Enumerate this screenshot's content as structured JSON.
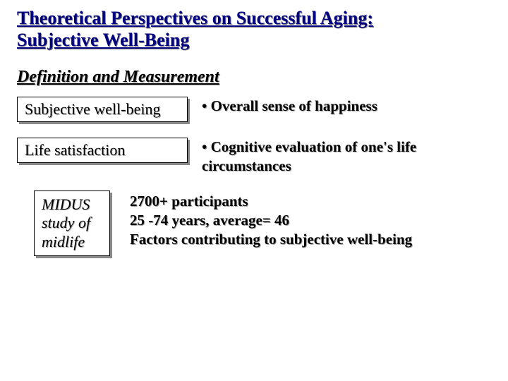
{
  "title_line1": "Theoretical Perspectives on Successful Aging:",
  "title_line2": "Subjective Well-Being",
  "section_heading": "Definition and Measurement",
  "rows": [
    {
      "box_label": "Subjective well-being",
      "desc": "• Overall sense of happiness"
    },
    {
      "box_label": "Life satisfaction",
      "desc": "• Cognitive evaluation of one's life circumstances"
    }
  ],
  "midus": {
    "box_line1": "MIDUS",
    "box_line2": "study of",
    "box_line3": "midlife",
    "line1": "2700+ participants",
    "line2": "25 -74 years, average= 46",
    "line3": "Factors contributing to subjective well-being"
  },
  "colors": {
    "title_color": "#000080",
    "text_color": "#000000",
    "shadow_color": "#888888",
    "background": "#ffffff"
  },
  "fonts": {
    "family": "Times New Roman",
    "title_size_pt": 26,
    "section_size_pt": 24,
    "box_size_pt": 22,
    "desc_size_pt": 21
  }
}
